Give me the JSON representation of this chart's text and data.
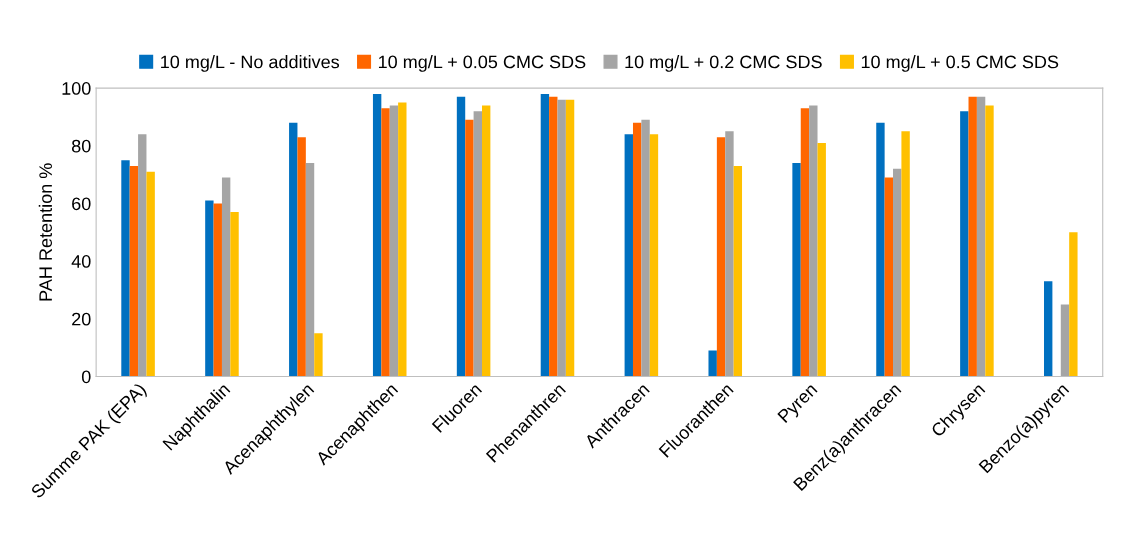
{
  "chart_data": {
    "type": "bar",
    "ylabel": "PAH Retention %",
    "categories": [
      "Summe PAK (EPA)",
      "Naphthalin",
      "Acenaphthylen",
      "Acenaphthen",
      "Fluoren",
      "Phenanthren",
      "Anthracen",
      "Fluoranthen",
      "Pyren",
      "Benz(a)anthracen",
      "Chrysen",
      "Benzo(a)pyren"
    ],
    "series": [
      {
        "name": "10 mg/L - No additives",
        "color": "#0070c0",
        "values": [
          75,
          61,
          88,
          98,
          97,
          98,
          84,
          9,
          74,
          88,
          92,
          33
        ]
      },
      {
        "name": "10 mg/L + 0.05 CMC SDS",
        "color": "#ff6600",
        "values": [
          73,
          60,
          83,
          93,
          89,
          97,
          88,
          83,
          93,
          69,
          97,
          null
        ]
      },
      {
        "name": "10 mg/L + 0.2 CMC SDS",
        "color": "#a5a5a5",
        "values": [
          84,
          69,
          74,
          94,
          92,
          96,
          89,
          85,
          94,
          72,
          97,
          25
        ]
      },
      {
        "name": "10 mg/L + 0.5 CMC SDS",
        "color": "#ffc000",
        "values": [
          71,
          57,
          15,
          95,
          94,
          96,
          84,
          73,
          81,
          85,
          94,
          50
        ]
      }
    ],
    "ylim": [
      0,
      100
    ],
    "yticks": [
      0,
      20,
      40,
      60,
      80,
      100
    ],
    "grid": false,
    "legend": "top"
  }
}
